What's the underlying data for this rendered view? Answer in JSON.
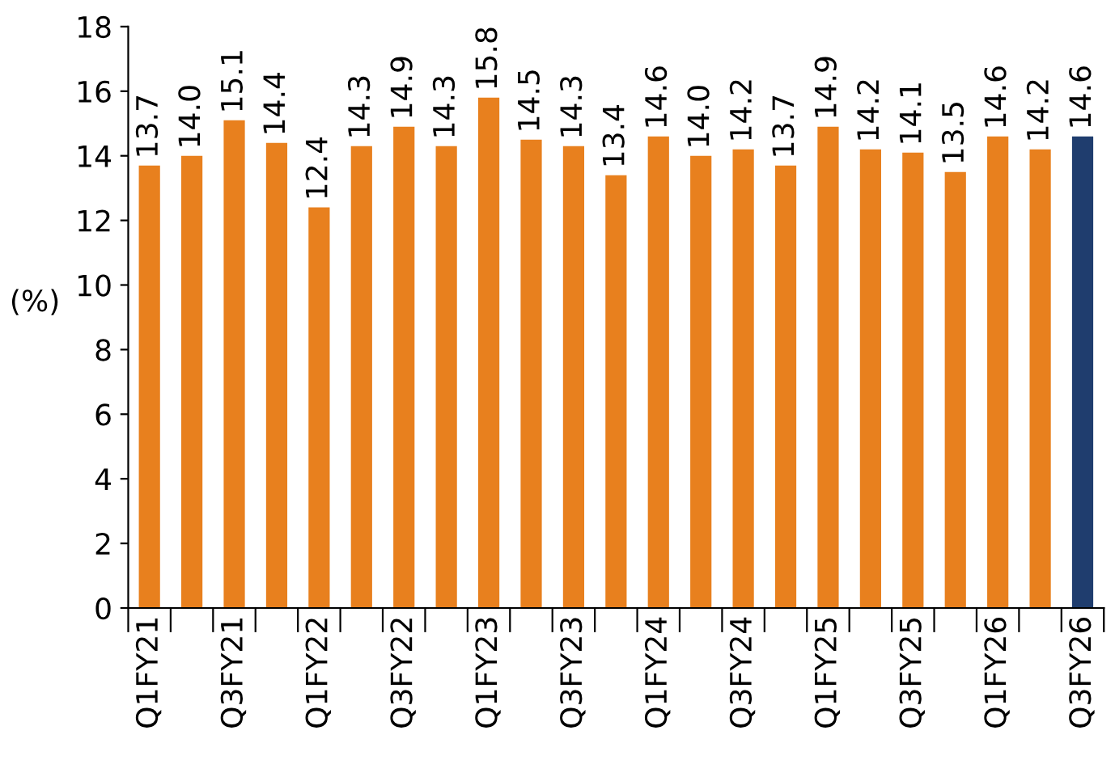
{
  "chart_data": {
    "type": "bar",
    "ylabel": "(%)",
    "categories": [
      "Q1FY21",
      null,
      "Q3FY21",
      null,
      "Q1FY22",
      null,
      "Q3FY22",
      null,
      "Q1FY23",
      null,
      "Q3FY23",
      null,
      "Q1FY24",
      null,
      "Q3FY24",
      null,
      "Q1FY25",
      null,
      "Q3FY25",
      null,
      "Q1FY26",
      null,
      "Q3FY26"
    ],
    "values": [
      13.7,
      14.0,
      15.1,
      14.4,
      12.4,
      14.3,
      14.9,
      14.3,
      15.8,
      14.5,
      14.3,
      13.4,
      14.6,
      14.0,
      14.2,
      13.7,
      14.9,
      14.2,
      14.1,
      13.5,
      14.6,
      14.2,
      14.6
    ],
    "colors": [
      "#e8801e",
      "#e8801e",
      "#e8801e",
      "#e8801e",
      "#e8801e",
      "#e8801e",
      "#e8801e",
      "#e8801e",
      "#e8801e",
      "#e8801e",
      "#e8801e",
      "#e8801e",
      "#e8801e",
      "#e8801e",
      "#e8801e",
      "#e8801e",
      "#e8801e",
      "#e8801e",
      "#e8801e",
      "#e8801e",
      "#e8801e",
      "#e8801e",
      "#1f3d6e"
    ],
    "value_labels": [
      "13.7",
      "14.0",
      "15.1",
      "14.4",
      "12.4",
      "14.3",
      "14.9",
      "14.3",
      "15.8",
      "14.5",
      "14.3",
      "13.4",
      "14.6",
      "14.0",
      "14.2",
      "13.7",
      "14.9",
      "14.2",
      "14.1",
      "13.5",
      "14.6",
      "14.2",
      "14.6"
    ],
    "ylim": [
      0,
      18
    ],
    "yticks": [
      0,
      2,
      4,
      6,
      8,
      10,
      12,
      14,
      16,
      18
    ],
    "grid": false,
    "legend": false
  }
}
